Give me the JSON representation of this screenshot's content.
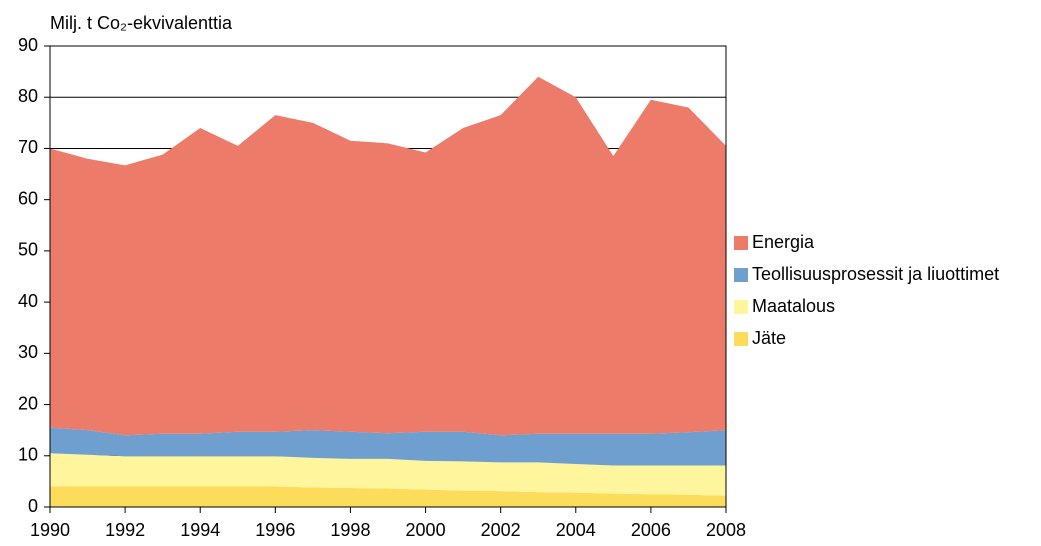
{
  "chart_data": {
    "type": "area",
    "y_label": "Milj. t Co₂-ekvivalenttia",
    "x": [
      1990,
      1991,
      1992,
      1993,
      1994,
      1995,
      1996,
      1997,
      1998,
      1999,
      2000,
      2001,
      2002,
      2003,
      2004,
      2005,
      2006,
      2007,
      2008
    ],
    "series": [
      {
        "name": "Energia",
        "color": "#ec7b6a",
        "values": [
          54.5,
          53,
          52.7,
          54.5,
          59.7,
          55.8,
          61.8,
          60,
          56.8,
          56.6,
          54.5,
          59.3,
          62.5,
          69.7,
          65.7,
          54.2,
          65.2,
          63.4,
          55.5
        ]
      },
      {
        "name": "Teollisuusprosessit ja liuottimet",
        "color": "#6e9fcf",
        "values": [
          5,
          4.8,
          4.1,
          4.4,
          4.4,
          4.8,
          4.8,
          5.4,
          5.3,
          5.0,
          5.7,
          5.8,
          5.3,
          5.6,
          5.9,
          6.2,
          6.2,
          6.5,
          6.9
        ]
      },
      {
        "name": "Maatalous",
        "color": "#fff59d",
        "values": [
          6.5,
          6.2,
          5.9,
          5.9,
          5.9,
          5.9,
          5.9,
          5.8,
          5.7,
          5.8,
          5.6,
          5.7,
          5.6,
          5.8,
          5.6,
          5.5,
          5.6,
          5.7,
          5.9
        ]
      },
      {
        "name": "Jäte",
        "color": "#fddc5c",
        "values": [
          4,
          4,
          4,
          4,
          4,
          4,
          4,
          3.8,
          3.7,
          3.6,
          3.4,
          3.2,
          3.1,
          2.9,
          2.8,
          2.6,
          2.5,
          2.4,
          2.2
        ]
      }
    ],
    "stacked": true,
    "xlim": [
      1990,
      2008
    ],
    "xticks": [
      1990,
      1992,
      1994,
      1996,
      1998,
      2000,
      2002,
      2004,
      2006,
      2008
    ],
    "ylim": [
      0,
      90
    ],
    "yticks": [
      0,
      10,
      20,
      30,
      40,
      50,
      60,
      70,
      80,
      90
    ],
    "grid": true,
    "legend": "right"
  }
}
